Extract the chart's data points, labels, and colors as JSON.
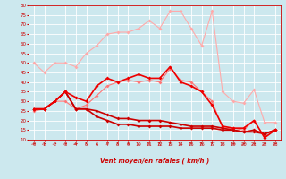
{
  "background_color": "#cce8ee",
  "grid_color": "#ffffff",
  "xlabel": "Vent moyen/en rafales ( km/h )",
  "x": [
    0,
    1,
    2,
    3,
    4,
    5,
    6,
    7,
    8,
    9,
    10,
    11,
    12,
    13,
    14,
    15,
    16,
    17,
    18,
    19,
    20,
    21,
    22,
    23
  ],
  "series": [
    {
      "color": "#ffaaaa",
      "lw": 0.8,
      "marker": "D",
      "ms": 2.0,
      "values": [
        50,
        45,
        50,
        50,
        48,
        55,
        59,
        65,
        66,
        66,
        68,
        72,
        68,
        77,
        77,
        68,
        59,
        77,
        35,
        30,
        29,
        36,
        19,
        19
      ]
    },
    {
      "color": "#ff7777",
      "lw": 0.8,
      "marker": "D",
      "ms": 2.0,
      "values": [
        25,
        26,
        30,
        30,
        26,
        28,
        33,
        38,
        40,
        41,
        40,
        41,
        40,
        47,
        41,
        40,
        35,
        30,
        16,
        16,
        15,
        20,
        11,
        15
      ]
    },
    {
      "color": "#cc0000",
      "lw": 1.2,
      "marker": "D",
      "ms": 2.0,
      "values": [
        26,
        26,
        30,
        35,
        26,
        26,
        22,
        20,
        18,
        18,
        17,
        17,
        17,
        17,
        16,
        16,
        16,
        16,
        15,
        15,
        14,
        14,
        13,
        15
      ]
    },
    {
      "color": "#cc0000",
      "lw": 1.2,
      "marker": "D",
      "ms": 2.0,
      "values": [
        26,
        26,
        30,
        35,
        26,
        26,
        25,
        23,
        21,
        21,
        20,
        20,
        20,
        19,
        18,
        17,
        17,
        17,
        16,
        15,
        14,
        15,
        13,
        15
      ]
    },
    {
      "color": "#ee0000",
      "lw": 1.2,
      "marker": "D",
      "ms": 2.0,
      "values": [
        26,
        26,
        30,
        35,
        32,
        30,
        38,
        42,
        40,
        42,
        44,
        42,
        42,
        48,
        40,
        38,
        35,
        28,
        17,
        16,
        16,
        20,
        11,
        15
      ]
    }
  ],
  "ylim": [
    10,
    80
  ],
  "yticks": [
    10,
    15,
    20,
    25,
    30,
    35,
    40,
    45,
    50,
    55,
    60,
    65,
    70,
    75,
    80
  ],
  "xlim": [
    -0.5,
    23.5
  ],
  "arrow_angles_deg": [
    45,
    45,
    45,
    45,
    45,
    0,
    0,
    0,
    0,
    0,
    0,
    0,
    0,
    0,
    0,
    0,
    0,
    0,
    0,
    45,
    45,
    45,
    45,
    45
  ]
}
